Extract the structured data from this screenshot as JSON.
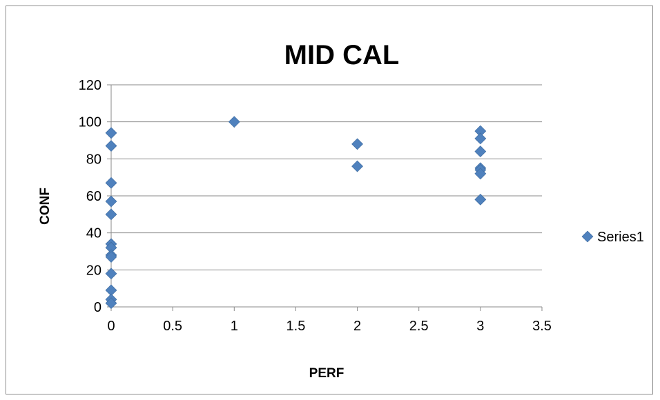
{
  "chart_data": {
    "type": "scatter",
    "title": "MID CAL",
    "xlabel": "PERF",
    "ylabel": "CONF",
    "xlim": [
      0,
      3.5
    ],
    "ylim": [
      0,
      120
    ],
    "xticks": [
      0,
      0.5,
      1,
      1.5,
      2,
      2.5,
      3,
      3.5
    ],
    "yticks": [
      0,
      20,
      40,
      60,
      80,
      100,
      120
    ],
    "x_tick_labels": [
      "0",
      "0.5",
      "1",
      "1.5",
      "2",
      "2.5",
      "3",
      "3.5"
    ],
    "y_tick_labels": [
      "0",
      "20",
      "40",
      "60",
      "80",
      "100",
      "120"
    ],
    "grid": "horizontal",
    "legend_position": "right",
    "series": [
      {
        "name": "Series1",
        "color": "#4f81bd",
        "marker": "diamond",
        "points": [
          {
            "x": 0,
            "y": 94
          },
          {
            "x": 0,
            "y": 87
          },
          {
            "x": 0,
            "y": 67
          },
          {
            "x": 0,
            "y": 57
          },
          {
            "x": 0,
            "y": 50
          },
          {
            "x": 0,
            "y": 34
          },
          {
            "x": 0,
            "y": 32
          },
          {
            "x": 0,
            "y": 28
          },
          {
            "x": 0,
            "y": 27
          },
          {
            "x": 0,
            "y": 18
          },
          {
            "x": 0,
            "y": 9
          },
          {
            "x": 0,
            "y": 4
          },
          {
            "x": 0,
            "y": 2
          },
          {
            "x": 1,
            "y": 100
          },
          {
            "x": 2,
            "y": 88
          },
          {
            "x": 2,
            "y": 76
          },
          {
            "x": 3,
            "y": 95
          },
          {
            "x": 3,
            "y": 91
          },
          {
            "x": 3,
            "y": 84
          },
          {
            "x": 3,
            "y": 75
          },
          {
            "x": 3,
            "y": 74
          },
          {
            "x": 3,
            "y": 72
          },
          {
            "x": 3,
            "y": 58
          }
        ]
      }
    ]
  }
}
